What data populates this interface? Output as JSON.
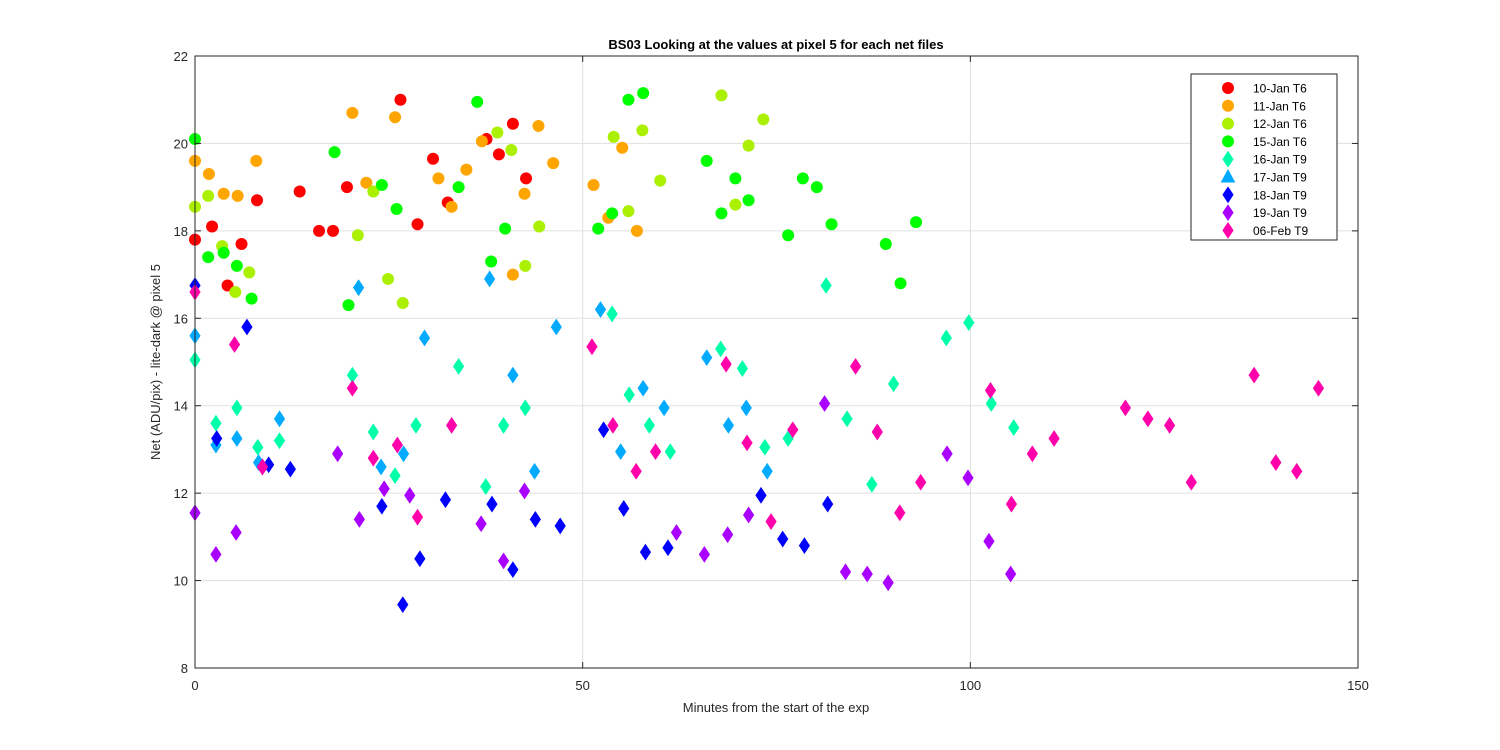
{
  "chart_data": {
    "type": "scatter",
    "title": "BS03  Looking at the values at pixel 5 for each net files",
    "xlabel": "Minutes from the start of the exp",
    "ylabel": "Net (ADU/pix) - lite-dark @ pixel 5",
    "xlim": [
      0,
      150
    ],
    "ylim": [
      8,
      22
    ],
    "xticks": [
      0,
      50,
      100,
      150
    ],
    "yticks": [
      8,
      10,
      12,
      14,
      16,
      18,
      20,
      22
    ],
    "xgrid_lines": [
      50,
      100
    ],
    "ygrid": true,
    "legend_position": "top-right",
    "series": [
      {
        "name": "10-Jan T6",
        "color": "#ff0000",
        "marker": "circle",
        "points": [
          [
            0.0,
            17.8
          ],
          [
            2.2,
            18.1
          ],
          [
            4.2,
            16.75
          ],
          [
            6.0,
            17.7
          ],
          [
            8.0,
            18.7
          ],
          [
            13.5,
            18.9
          ],
          [
            16.0,
            18.0
          ],
          [
            17.8,
            18.0
          ],
          [
            19.6,
            19.0
          ],
          [
            26.5,
            21.0
          ],
          [
            28.7,
            18.15
          ],
          [
            30.7,
            19.65
          ],
          [
            32.6,
            18.65
          ],
          [
            37.6,
            20.1
          ],
          [
            39.2,
            19.75
          ],
          [
            41.0,
            20.45
          ],
          [
            42.7,
            19.2
          ]
        ]
      },
      {
        "name": "11-Jan T6",
        "color": "#ffa500",
        "marker": "circle",
        "points": [
          [
            0.0,
            19.6
          ],
          [
            1.8,
            19.3
          ],
          [
            3.7,
            18.85
          ],
          [
            5.5,
            18.8
          ],
          [
            7.9,
            19.6
          ],
          [
            20.3,
            20.7
          ],
          [
            22.1,
            19.1
          ],
          [
            25.8,
            20.6
          ],
          [
            31.4,
            19.2
          ],
          [
            33.1,
            18.55
          ],
          [
            35.0,
            19.4
          ],
          [
            37.0,
            20.05
          ],
          [
            41.0,
            17.0
          ],
          [
            42.5,
            18.85
          ],
          [
            44.3,
            20.4
          ],
          [
            46.2,
            19.55
          ],
          [
            51.4,
            19.05
          ],
          [
            53.3,
            18.3
          ],
          [
            55.1,
            19.9
          ],
          [
            57.0,
            18.0
          ]
        ]
      },
      {
        "name": "12-Jan T6",
        "color": "#aaf000",
        "marker": "circle",
        "points": [
          [
            0.0,
            18.55
          ],
          [
            1.7,
            18.8
          ],
          [
            3.5,
            17.65
          ],
          [
            5.2,
            16.6
          ],
          [
            7.0,
            17.05
          ],
          [
            21.0,
            17.9
          ],
          [
            23.0,
            18.9
          ],
          [
            24.9,
            16.9
          ],
          [
            26.8,
            16.35
          ],
          [
            39.0,
            20.25
          ],
          [
            40.8,
            19.85
          ],
          [
            42.6,
            17.2
          ],
          [
            44.4,
            18.1
          ],
          [
            54.0,
            20.15
          ],
          [
            55.9,
            18.45
          ],
          [
            57.7,
            20.3
          ],
          [
            60.0,
            19.15
          ],
          [
            67.9,
            21.1
          ],
          [
            69.7,
            18.6
          ],
          [
            71.4,
            19.95
          ],
          [
            73.3,
            20.55
          ]
        ]
      },
      {
        "name": "15-Jan T6",
        "color": "#00ff00",
        "marker": "circle",
        "points": [
          [
            0.0,
            20.1
          ],
          [
            1.7,
            17.4
          ],
          [
            3.7,
            17.5
          ],
          [
            5.4,
            17.2
          ],
          [
            7.3,
            16.45
          ],
          [
            18.0,
            19.8
          ],
          [
            19.8,
            16.3
          ],
          [
            24.1,
            19.05
          ],
          [
            26.0,
            18.5
          ],
          [
            34.0,
            19.0
          ],
          [
            36.4,
            20.95
          ],
          [
            38.2,
            17.3
          ],
          [
            40.0,
            18.05
          ],
          [
            52.0,
            18.05
          ],
          [
            53.8,
            18.4
          ],
          [
            55.9,
            21.0
          ],
          [
            57.8,
            21.15
          ],
          [
            66.0,
            19.6
          ],
          [
            67.9,
            18.4
          ],
          [
            69.7,
            19.2
          ],
          [
            71.4,
            18.7
          ],
          [
            76.5,
            17.9
          ],
          [
            78.4,
            19.2
          ],
          [
            80.2,
            19.0
          ],
          [
            82.1,
            18.15
          ],
          [
            89.1,
            17.7
          ],
          [
            91.0,
            16.8
          ],
          [
            93.0,
            18.2
          ]
        ]
      },
      {
        "name": "16-Jan T9",
        "color": "#00ffaa",
        "marker": "diamond",
        "points": [
          [
            0.0,
            15.05
          ],
          [
            2.7,
            13.6
          ],
          [
            5.4,
            13.95
          ],
          [
            8.1,
            13.05
          ],
          [
            10.9,
            13.2
          ],
          [
            20.3,
            14.7
          ],
          [
            23.0,
            13.4
          ],
          [
            25.8,
            12.4
          ],
          [
            28.5,
            13.55
          ],
          [
            34.0,
            14.9
          ],
          [
            37.5,
            12.15
          ],
          [
            39.8,
            13.55
          ],
          [
            42.6,
            13.95
          ],
          [
            53.8,
            16.1
          ],
          [
            56.0,
            14.25
          ],
          [
            58.6,
            13.55
          ],
          [
            61.3,
            12.95
          ],
          [
            67.8,
            15.3
          ],
          [
            70.6,
            14.85
          ],
          [
            73.5,
            13.05
          ],
          [
            76.5,
            13.25
          ],
          [
            81.4,
            16.75
          ],
          [
            84.1,
            13.7
          ],
          [
            87.3,
            12.2
          ],
          [
            90.1,
            14.5
          ],
          [
            96.9,
            15.55
          ],
          [
            99.8,
            15.9
          ],
          [
            102.7,
            14.05
          ],
          [
            105.6,
            13.5
          ]
        ]
      },
      {
        "name": "17-Jan T9",
        "color": "#00aaff",
        "marker": "diamond",
        "points": [
          [
            0.0,
            15.6
          ],
          [
            2.7,
            13.1
          ],
          [
            5.4,
            13.25
          ],
          [
            8.2,
            12.7
          ],
          [
            10.9,
            13.7
          ],
          [
            21.1,
            16.7
          ],
          [
            24.0,
            12.6
          ],
          [
            26.9,
            12.9
          ],
          [
            29.6,
            15.55
          ],
          [
            38.0,
            16.9
          ],
          [
            41.0,
            14.7
          ],
          [
            43.8,
            12.5
          ],
          [
            46.6,
            15.8
          ],
          [
            52.3,
            16.2
          ],
          [
            54.9,
            12.95
          ],
          [
            57.8,
            14.4
          ],
          [
            60.5,
            13.95
          ],
          [
            66.0,
            15.1
          ],
          [
            68.8,
            13.55
          ],
          [
            71.1,
            13.95
          ],
          [
            73.8,
            12.5
          ]
        ]
      },
      {
        "name": "18-Jan T9",
        "color": "#0000ff",
        "marker": "diamond",
        "points": [
          [
            0.0,
            16.75
          ],
          [
            2.8,
            13.25
          ],
          [
            6.7,
            15.8
          ],
          [
            9.5,
            12.65
          ],
          [
            12.3,
            12.55
          ],
          [
            24.1,
            11.7
          ],
          [
            26.8,
            9.45
          ],
          [
            29.0,
            10.5
          ],
          [
            32.3,
            11.85
          ],
          [
            38.3,
            11.75
          ],
          [
            41.0,
            10.25
          ],
          [
            43.9,
            11.4
          ],
          [
            47.1,
            11.25
          ],
          [
            52.7,
            13.45
          ],
          [
            55.3,
            11.65
          ],
          [
            58.1,
            10.65
          ],
          [
            61.0,
            10.75
          ],
          [
            73.0,
            11.95
          ],
          [
            75.8,
            10.95
          ],
          [
            78.6,
            10.8
          ],
          [
            81.6,
            11.75
          ]
        ]
      },
      {
        "name": "19-Jan T9",
        "color": "#aa00ff",
        "marker": "diamond",
        "points": [
          [
            0.0,
            11.55
          ],
          [
            2.7,
            10.6
          ],
          [
            5.3,
            11.1
          ],
          [
            8.7,
            12.6
          ],
          [
            18.4,
            12.9
          ],
          [
            21.2,
            11.4
          ],
          [
            24.4,
            12.1
          ],
          [
            27.7,
            11.95
          ],
          [
            36.9,
            11.3
          ],
          [
            39.8,
            10.45
          ],
          [
            42.5,
            12.05
          ],
          [
            62.1,
            11.1
          ],
          [
            65.7,
            10.6
          ],
          [
            68.7,
            11.05
          ],
          [
            71.4,
            11.5
          ],
          [
            81.2,
            14.05
          ],
          [
            83.9,
            10.2
          ],
          [
            86.7,
            10.15
          ],
          [
            89.4,
            9.95
          ],
          [
            97.0,
            12.9
          ],
          [
            99.7,
            12.35
          ],
          [
            102.4,
            10.9
          ],
          [
            105.2,
            10.15
          ]
        ]
      },
      {
        "name": "06-Feb T9",
        "color": "#ff00aa",
        "marker": "diamond",
        "points": [
          [
            0.0,
            16.6
          ],
          [
            5.1,
            15.4
          ],
          [
            8.7,
            12.6
          ],
          [
            20.3,
            14.4
          ],
          [
            23.0,
            12.8
          ],
          [
            26.1,
            13.1
          ],
          [
            28.7,
            11.45
          ],
          [
            33.1,
            13.55
          ],
          [
            51.2,
            15.35
          ],
          [
            53.9,
            13.55
          ],
          [
            56.9,
            12.5
          ],
          [
            59.4,
            12.95
          ],
          [
            68.5,
            14.95
          ],
          [
            71.2,
            13.15
          ],
          [
            74.3,
            11.35
          ],
          [
            77.1,
            13.45
          ],
          [
            85.2,
            14.9
          ],
          [
            88.0,
            13.4
          ],
          [
            90.9,
            11.55
          ],
          [
            93.6,
            12.25
          ],
          [
            102.6,
            14.35
          ],
          [
            105.3,
            11.75
          ],
          [
            108.0,
            12.9
          ],
          [
            110.8,
            13.25
          ],
          [
            120.0,
            13.95
          ],
          [
            122.9,
            13.7
          ],
          [
            125.7,
            13.55
          ],
          [
            128.5,
            12.25
          ],
          [
            136.6,
            14.7
          ],
          [
            139.4,
            12.7
          ],
          [
            142.1,
            12.5
          ],
          [
            144.9,
            14.4
          ]
        ]
      }
    ]
  }
}
